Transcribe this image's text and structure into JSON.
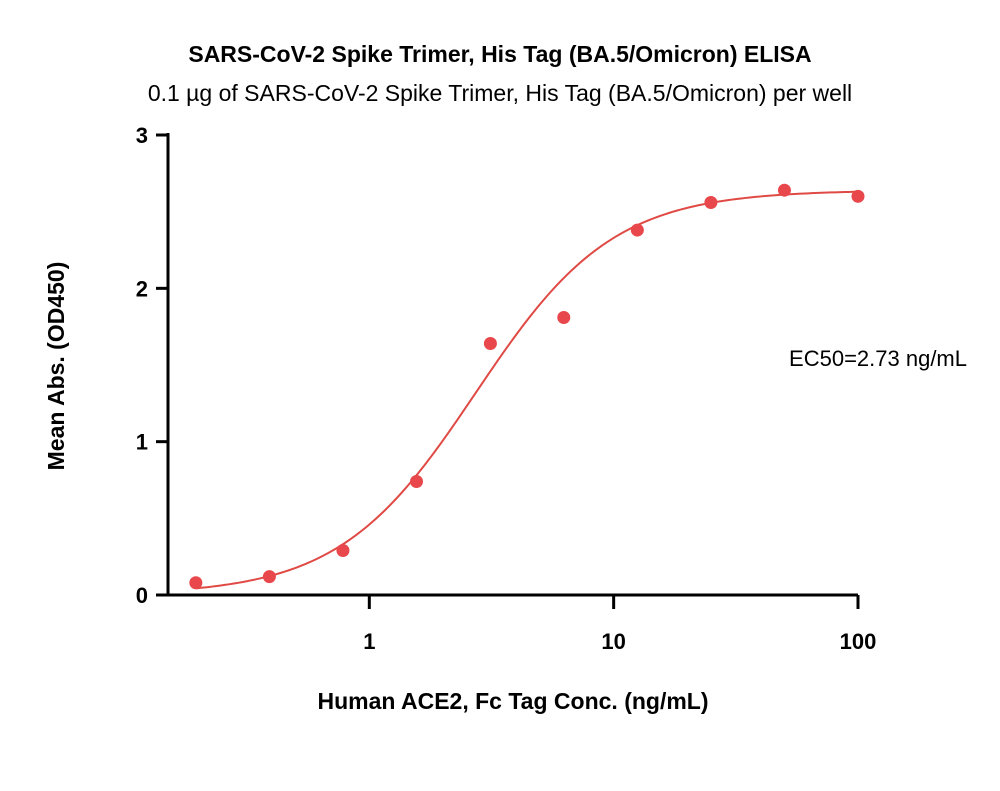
{
  "chart_data": {
    "type": "scatter",
    "title": "SARS-CoV-2 Spike Trimer, His Tag (BA.5/Omicron) ELISA",
    "subtitle": "0.1 µg of SARS-CoV-2 Spike Trimer, His Tag (BA.5/Omicron) per well",
    "xlabel": "Human ACE2, Fc Tag Conc. (ng/mL)",
    "ylabel": "Mean Abs. (OD450)",
    "xscale": "log",
    "xlim": [
      0.15,
      100
    ],
    "ylim": [
      0,
      3
    ],
    "xticks": [
      {
        "value": 1,
        "label": "1"
      },
      {
        "value": 10,
        "label": "10"
      },
      {
        "value": 100,
        "label": "100"
      }
    ],
    "yticks": [
      {
        "value": 0,
        "label": "0"
      },
      {
        "value": 1,
        "label": "1"
      },
      {
        "value": 2,
        "label": "2"
      },
      {
        "value": 3,
        "label": "3"
      }
    ],
    "grid": false,
    "series": [
      {
        "points": [
          {
            "x": 0.195,
            "y": 0.08
          },
          {
            "x": 0.39,
            "y": 0.12
          },
          {
            "x": 0.78,
            "y": 0.29
          },
          {
            "x": 1.56,
            "y": 0.74
          },
          {
            "x": 3.13,
            "y": 1.64
          },
          {
            "x": 6.25,
            "y": 1.81
          },
          {
            "x": 12.5,
            "y": 2.38
          },
          {
            "x": 25,
            "y": 2.56
          },
          {
            "x": 50,
            "y": 2.64
          },
          {
            "x": 100,
            "y": 2.6
          }
        ],
        "color": "#e8474b",
        "fit": {
          "model": "4PL",
          "bottom": 0.0,
          "top": 2.64,
          "ec50": 2.73,
          "hill": 1.55,
          "color": "#e04a45"
        }
      }
    ],
    "annotation": "EC50=2.73 ng/mL"
  }
}
